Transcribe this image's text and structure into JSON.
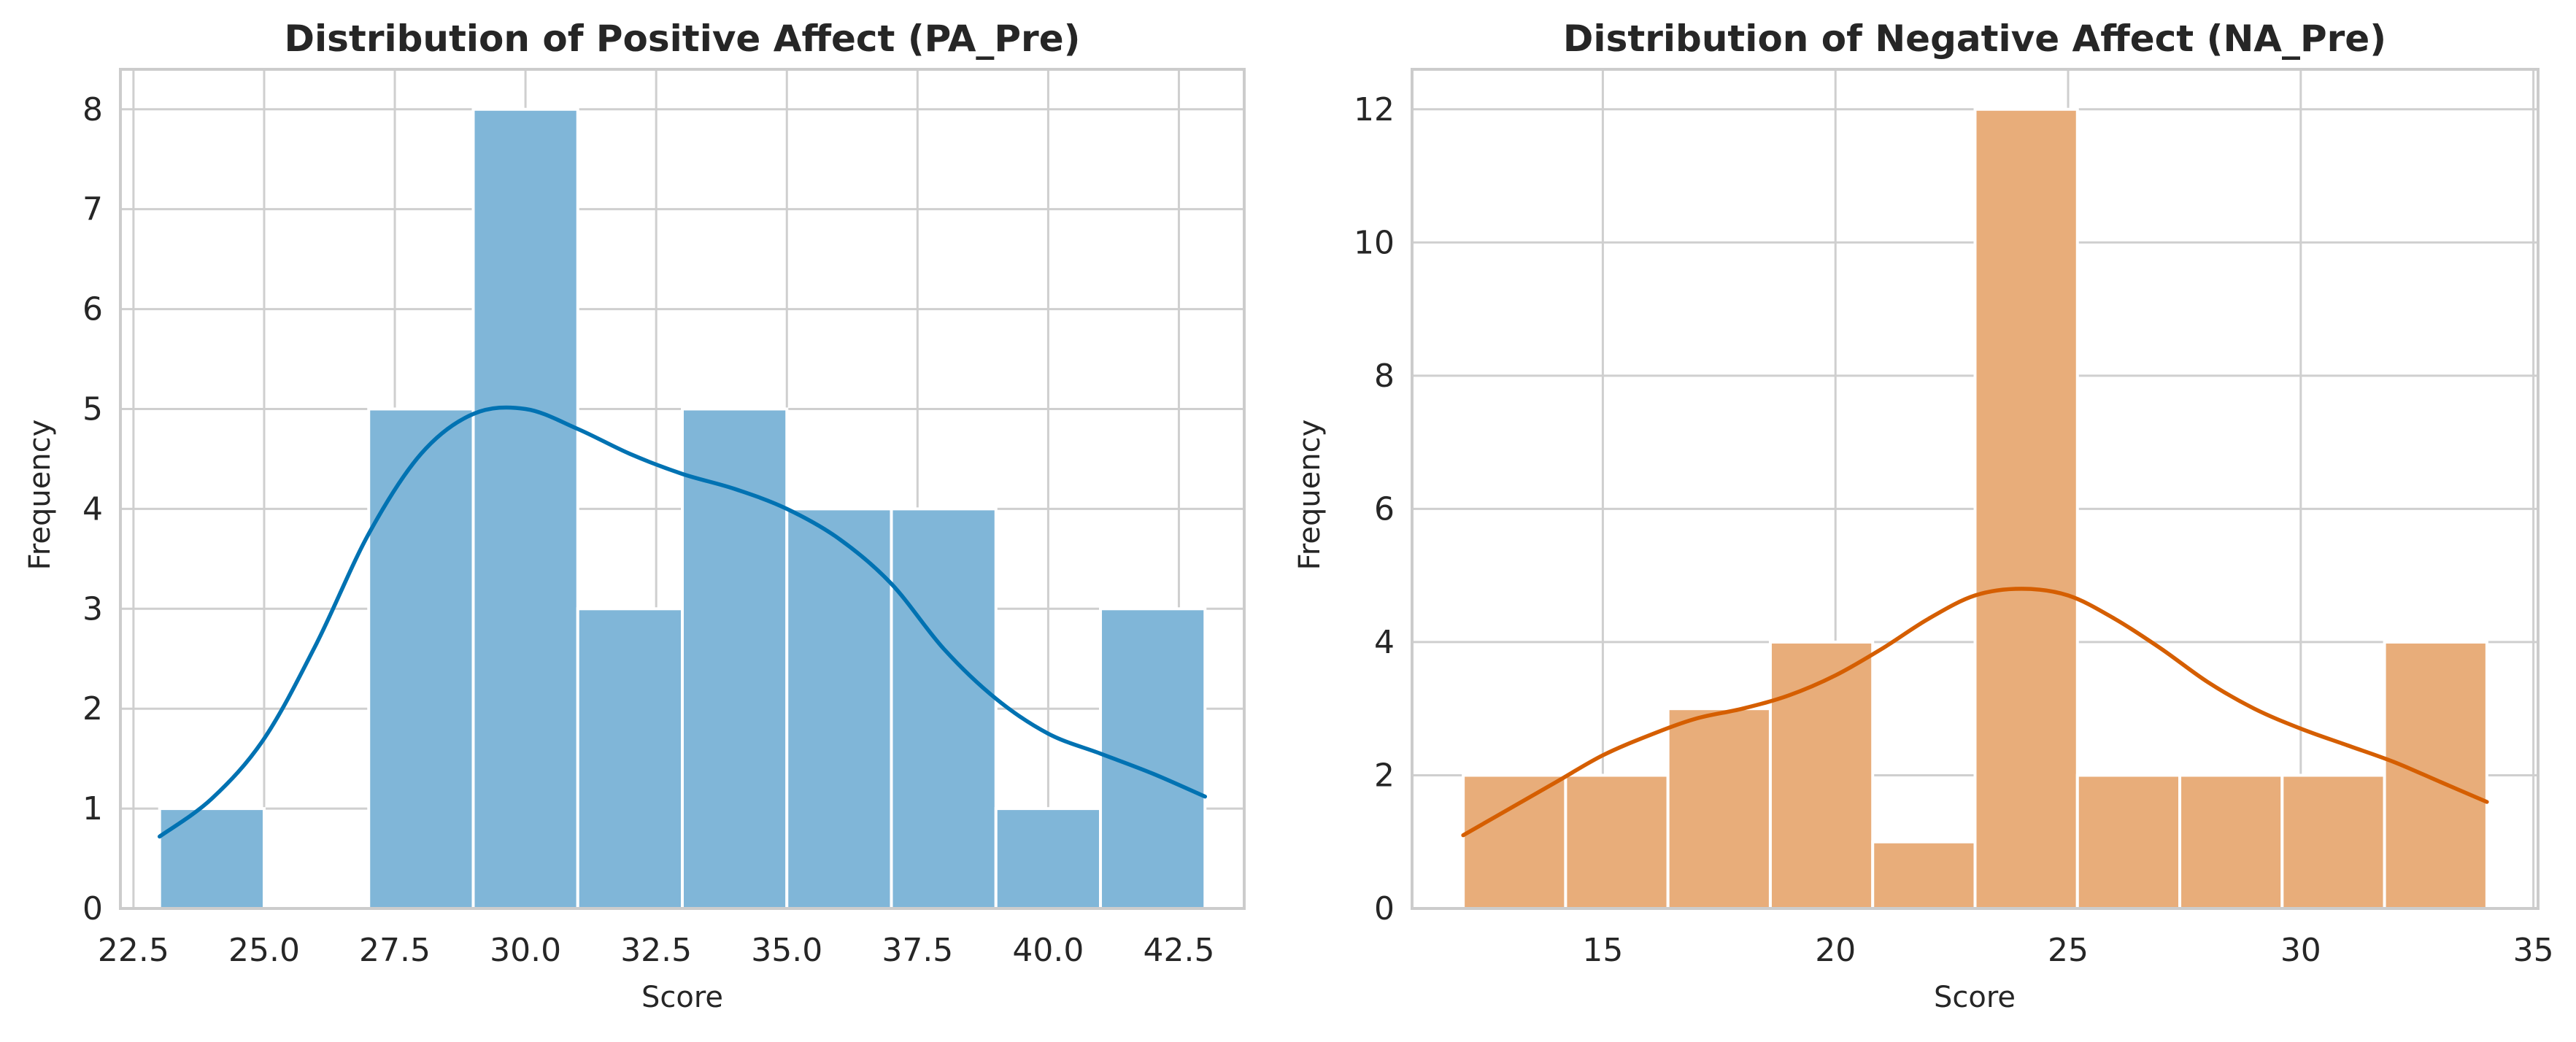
{
  "chart_data": [
    {
      "type": "bar",
      "title": "Distribution of Positive Affect (PA_Pre)",
      "xlabel": "Score",
      "ylabel": "Frequency",
      "xlim": [
        22.25,
        43.75
      ],
      "ylim": [
        0,
        8.4
      ],
      "xticks": [
        22.5,
        25.0,
        27.5,
        30.0,
        32.5,
        35.0,
        37.5,
        40.0,
        42.5
      ],
      "xtick_labels": [
        "22.5",
        "25.0",
        "27.5",
        "30.0",
        "32.5",
        "35.0",
        "37.5",
        "40.0",
        "42.5"
      ],
      "yticks": [
        0,
        1,
        2,
        3,
        4,
        5,
        6,
        7,
        8
      ],
      "ytick_labels": [
        "0",
        "1",
        "2",
        "3",
        "4",
        "5",
        "6",
        "7",
        "8"
      ],
      "bin_edges": [
        23,
        25,
        27,
        29,
        31,
        33,
        35,
        37,
        39,
        41,
        43
      ],
      "values": [
        1,
        0,
        5,
        8,
        3,
        5,
        4,
        4,
        1,
        3
      ],
      "kde": {
        "x": [
          23,
          24,
          25,
          26,
          27,
          28,
          29,
          30,
          31,
          32,
          33,
          34,
          35,
          36,
          37,
          38,
          39,
          40,
          41,
          42,
          43
        ],
        "y": [
          0.72,
          1.1,
          1.7,
          2.65,
          3.75,
          4.55,
          4.95,
          5.0,
          4.8,
          4.55,
          4.35,
          4.2,
          4.0,
          3.7,
          3.25,
          2.6,
          2.1,
          1.75,
          1.55,
          1.35,
          1.12
        ]
      },
      "grid": true,
      "colors": {
        "bar": "#80b6d8",
        "bar_edge": "#ffffff",
        "kde": "#0072b2"
      }
    },
    {
      "type": "bar",
      "title": "Distribution of Negative Affect (NA_Pre)",
      "xlabel": "Score",
      "ylabel": "Frequency",
      "xlim": [
        10.9,
        35.1
      ],
      "ylim": [
        0,
        12.6
      ],
      "xticks": [
        15,
        20,
        25,
        30,
        35
      ],
      "xtick_labels": [
        "15",
        "20",
        "25",
        "30",
        "35"
      ],
      "yticks": [
        0,
        2,
        4,
        6,
        8,
        10,
        12
      ],
      "ytick_labels": [
        "0",
        "2",
        "4",
        "6",
        "8",
        "10",
        "12"
      ],
      "bin_edges": [
        12,
        14.2,
        16.4,
        18.6,
        20.8,
        23,
        25.2,
        27.4,
        29.6,
        31.8,
        34
      ],
      "values": [
        2,
        2,
        3,
        4,
        1,
        12,
        2,
        2,
        2,
        4
      ],
      "kde": {
        "x": [
          12,
          13,
          14,
          15,
          16,
          17,
          18,
          19,
          20,
          21,
          22,
          23,
          24,
          25,
          26,
          27,
          28,
          29,
          30,
          31,
          32,
          33,
          34
        ],
        "y": [
          1.1,
          1.5,
          1.9,
          2.3,
          2.6,
          2.85,
          3.0,
          3.2,
          3.5,
          3.9,
          4.35,
          4.7,
          4.8,
          4.7,
          4.35,
          3.9,
          3.4,
          3.0,
          2.7,
          2.45,
          2.2,
          1.9,
          1.6
        ]
      },
      "grid": true,
      "colors": {
        "bar": "#e8ad7a",
        "bar_edge": "#ffffff",
        "kde": "#d55e00"
      }
    }
  ]
}
